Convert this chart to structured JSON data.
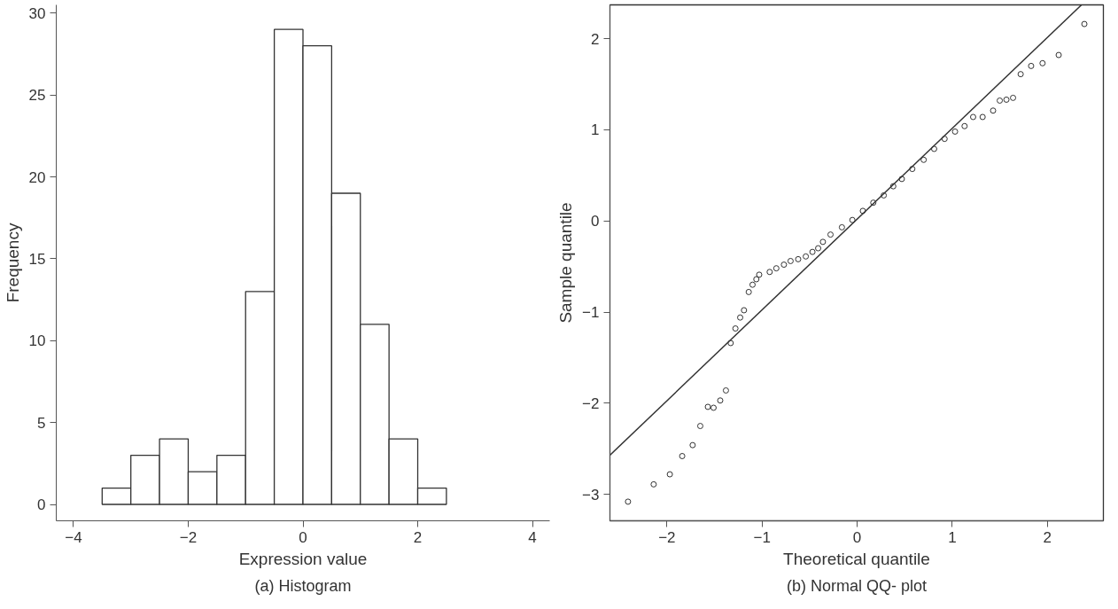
{
  "chart_data": [
    {
      "type": "histogram",
      "xlabel": "Expression value",
      "ylabel": "Frequency",
      "annotations": [
        "(a) Histogram"
      ],
      "bins": [
        -3.5,
        -3,
        -2.5,
        -2,
        -1.5,
        -1,
        -0.5,
        0,
        0.5,
        1,
        1.5,
        2,
        2.5
      ],
      "values": [
        1,
        3,
        4,
        2,
        3,
        13,
        29,
        28,
        19,
        11,
        4,
        1
      ],
      "color": "#ffffff",
      "xlim": [
        -4.3,
        4.3
      ],
      "xticks": [
        -4,
        -2,
        0,
        2,
        4
      ],
      "ylim": [
        -1,
        30.5
      ],
      "yticks": [
        0,
        5,
        10,
        15,
        20,
        25,
        30
      ],
      "grid": false
    },
    {
      "type": "scatter",
      "xlabel": "Theoretical quantile",
      "ylabel": "Sample quantile",
      "annotations": [
        "(b) Normal QQ- plot"
      ],
      "xlim": [
        -2.6,
        2.59
      ],
      "xticks": [
        -2,
        -1,
        0,
        1,
        2
      ],
      "ylim": [
        -3.29,
        2.37
      ],
      "yticks": [
        -3,
        -2,
        -1,
        0,
        1,
        2
      ],
      "grid": false,
      "series": [
        {
          "type": "scatter",
          "marker": "circle",
          "color": "#333333",
          "x": [
            -2.41,
            -2.14,
            -1.97,
            -1.84,
            -1.73,
            -1.65,
            -1.57,
            -1.51,
            -1.44,
            -1.38,
            -1.33,
            -1.28,
            -1.23,
            -1.19,
            -1.14,
            -1.1,
            -1.06,
            -1.03,
            -0.92,
            -0.85,
            -0.77,
            -0.7,
            -0.62,
            -0.54,
            -0.47,
            -0.41,
            -0.36,
            -0.28,
            -0.16,
            -0.05,
            0.06,
            0.17,
            0.28,
            0.38,
            0.47,
            0.58,
            0.7,
            0.81,
            0.92,
            1.03,
            1.13,
            1.22,
            1.32,
            1.43,
            1.5,
            1.57,
            1.64,
            1.72,
            1.83,
            1.95,
            2.12,
            2.39
          ],
          "values": [
            -3.08,
            -2.89,
            -2.78,
            -2.58,
            -2.46,
            -2.25,
            -2.04,
            -2.05,
            -1.97,
            -1.86,
            -1.34,
            -1.18,
            -1.06,
            -0.98,
            -0.78,
            -0.7,
            -0.64,
            -0.59,
            -0.56,
            -0.52,
            -0.48,
            -0.44,
            -0.42,
            -0.39,
            -0.34,
            -0.3,
            -0.23,
            -0.15,
            -0.07,
            0.01,
            0.11,
            0.2,
            0.28,
            0.38,
            0.46,
            0.57,
            0.67,
            0.79,
            0.9,
            0.98,
            1.04,
            1.14,
            1.14,
            1.21,
            1.32,
            1.33,
            1.35,
            1.61,
            1.7,
            1.73,
            1.82,
            2.16
          ]
        },
        {
          "type": "line",
          "color": "#333333",
          "x": [
            -2.6,
            2.36
          ],
          "values": [
            -2.57,
            2.37
          ]
        }
      ]
    }
  ]
}
